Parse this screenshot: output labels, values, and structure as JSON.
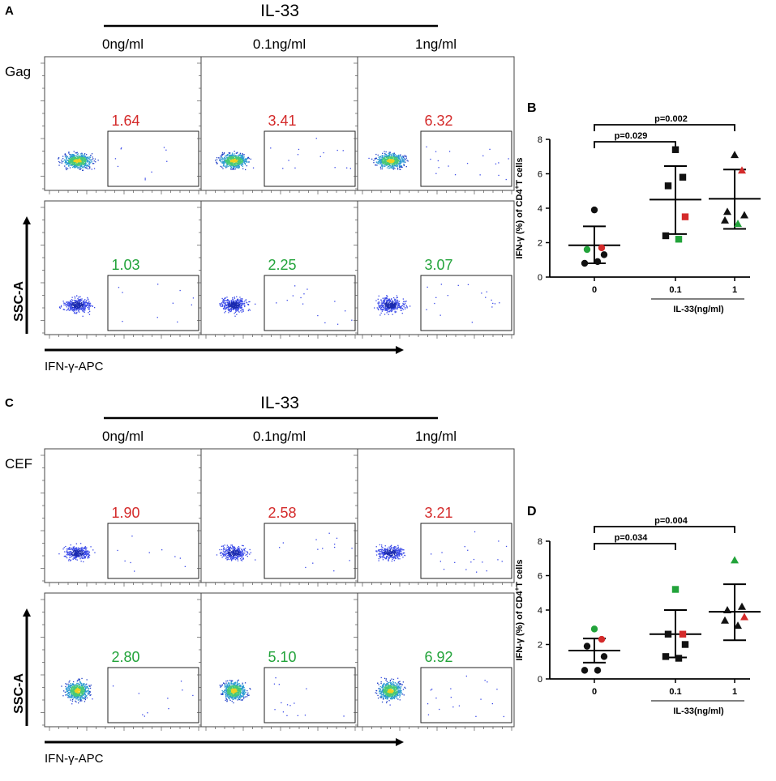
{
  "colors": {
    "red": "#d42a2a",
    "green": "#22a33a",
    "black": "#111111"
  },
  "panels": [
    {
      "letter": "A",
      "treatment": "IL-33",
      "concentrations": [
        "0ng/ml",
        "0.1ng/ml",
        "1ng/ml"
      ],
      "row_label": "Gag",
      "y_axis_label": "SSC-A",
      "x_axis_label": "IFN-γ-APC",
      "top_values": [
        "1.64",
        "3.41",
        "6.32"
      ],
      "bottom_values": [
        "1.03",
        "2.25",
        "3.07"
      ]
    },
    {
      "letter": "C",
      "treatment": "IL-33",
      "concentrations": [
        "0ng/ml",
        "0.1ng/ml",
        "1ng/ml"
      ],
      "row_label": "CEF",
      "y_axis_label": "SSC-A",
      "x_axis_label": "IFN-γ-APC",
      "top_values": [
        "1.90",
        "2.58",
        "3.21"
      ],
      "bottom_values": [
        "2.80",
        "5.10",
        "6.92"
      ]
    }
  ],
  "chart_data": [
    {
      "type": "scatter",
      "letter": "B",
      "ylabel": "IFN-γ (%) of CD4+T cells",
      "ylabel_parts": [
        "IFN-γ (%) of CD4",
        "+",
        "T cells"
      ],
      "xlabel": "IL-33(ng/ml)",
      "categories": [
        "0",
        "0.1",
        "1"
      ],
      "ylim": [
        0,
        8
      ],
      "yticks": [
        "0",
        "2",
        "4",
        "6",
        "8"
      ],
      "groups": [
        {
          "mean": 1.85,
          "sd_low": 0.8,
          "sd_high": 2.95,
          "points": [
            {
              "y": 3.9,
              "c": "black"
            },
            {
              "y": 1.7,
              "c": "red"
            },
            {
              "y": 1.6,
              "c": "green"
            },
            {
              "y": 1.3,
              "c": "black"
            },
            {
              "y": 0.8,
              "c": "black"
            },
            {
              "y": 0.9,
              "c": "black"
            }
          ]
        },
        {
          "mean": 4.5,
          "sd_low": 2.5,
          "sd_high": 6.45,
          "points": [
            {
              "y": 7.4,
              "c": "black"
            },
            {
              "y": 5.8,
              "c": "black"
            },
            {
              "y": 5.3,
              "c": "black"
            },
            {
              "y": 3.5,
              "c": "red"
            },
            {
              "y": 2.4,
              "c": "black"
            },
            {
              "y": 2.2,
              "c": "green"
            }
          ]
        },
        {
          "mean": 4.55,
          "sd_low": 2.8,
          "sd_high": 6.25,
          "points": [
            {
              "y": 7.1,
              "c": "black"
            },
            {
              "y": 6.2,
              "c": "red"
            },
            {
              "y": 3.8,
              "c": "black"
            },
            {
              "y": 3.6,
              "c": "black"
            },
            {
              "y": 3.3,
              "c": "black"
            },
            {
              "y": 3.1,
              "c": "green"
            }
          ]
        }
      ],
      "marker": "circle-square-triangle",
      "comparisons": [
        {
          "from": 0,
          "to": 1,
          "label": "p=0.029"
        },
        {
          "from": 0,
          "to": 2,
          "label": "p=0.002"
        }
      ]
    },
    {
      "type": "scatter",
      "letter": "D",
      "ylabel": "IFN-γ (%) of CD4+T cells",
      "ylabel_parts": [
        "IFN-γ (%) of CD4",
        "+",
        "T cells"
      ],
      "xlabel": "IL-33(ng/ml)",
      "categories": [
        "0",
        "0.1",
        "1"
      ],
      "ylim": [
        0,
        8
      ],
      "yticks": [
        "0",
        "2",
        "4",
        "6",
        "8"
      ],
      "groups": [
        {
          "mean": 1.65,
          "sd_low": 0.95,
          "sd_high": 2.35,
          "points": [
            {
              "y": 2.9,
              "c": "green"
            },
            {
              "y": 2.3,
              "c": "red"
            },
            {
              "y": 1.9,
              "c": "black"
            },
            {
              "y": 1.3,
              "c": "black"
            },
            {
              "y": 0.5,
              "c": "black"
            },
            {
              "y": 0.5,
              "c": "black"
            }
          ]
        },
        {
          "mean": 2.6,
          "sd_low": 1.25,
          "sd_high": 4.0,
          "points": [
            {
              "y": 5.2,
              "c": "green"
            },
            {
              "y": 2.6,
              "c": "red"
            },
            {
              "y": 2.6,
              "c": "black"
            },
            {
              "y": 2.0,
              "c": "black"
            },
            {
              "y": 1.3,
              "c": "black"
            },
            {
              "y": 1.2,
              "c": "black"
            }
          ]
        },
        {
          "mean": 3.9,
          "sd_low": 2.25,
          "sd_high": 5.5,
          "points": [
            {
              "y": 6.9,
              "c": "green"
            },
            {
              "y": 4.2,
              "c": "black"
            },
            {
              "y": 4.0,
              "c": "black"
            },
            {
              "y": 3.6,
              "c": "red"
            },
            {
              "y": 3.4,
              "c": "black"
            },
            {
              "y": 3.1,
              "c": "black"
            }
          ]
        }
      ],
      "marker": "circle-square-triangle",
      "comparisons": [
        {
          "from": 0,
          "to": 1,
          "label": "p=0.034"
        },
        {
          "from": 0,
          "to": 2,
          "label": "p=0.004"
        }
      ]
    }
  ]
}
